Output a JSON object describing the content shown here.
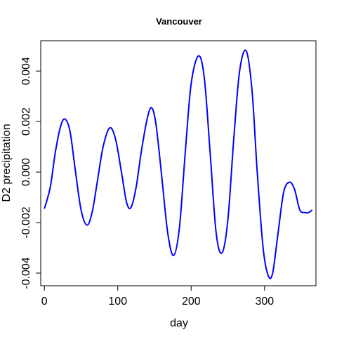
{
  "chart_data": {
    "type": "line",
    "title": "Vancouver",
    "xlabel": "day",
    "ylabel": "D2 precipitation",
    "xlim": [
      -5,
      370
    ],
    "ylim": [
      -0.0045,
      0.0052
    ],
    "x_ticks": [
      0,
      100,
      200,
      300
    ],
    "x_tick_labels": [
      "0",
      "100",
      "200",
      "300"
    ],
    "y_ticks": [
      -0.004,
      -0.002,
      0.0,
      0.002,
      0.004
    ],
    "y_tick_labels": [
      "-0.004",
      "-0.002",
      "0.000",
      "0.002",
      "0.004"
    ],
    "grid": false,
    "series": [
      {
        "color": "#0000ff",
        "x": [
          0,
          8,
          15,
          22,
          28,
          35,
          42,
          50,
          58,
          65,
          72,
          80,
          89,
          97,
          105,
          112,
          118,
          125,
          132,
          140,
          146,
          152,
          160,
          168,
          176,
          184,
          192,
          200,
          210,
          218,
          226,
          234,
          242,
          250,
          258,
          266,
          275,
          283,
          290,
          298,
          305,
          311,
          318,
          326,
          334,
          341,
          348,
          355,
          360,
          365
        ],
        "y": [
          -0.00145,
          -0.0006,
          0.0008,
          0.0018,
          0.0021,
          0.0016,
          0.0001,
          -0.0015,
          -0.0021,
          -0.0016,
          -0.0004,
          0.001,
          0.00175,
          0.0013,
          0.0,
          -0.0012,
          -0.0014,
          -0.0006,
          0.0008,
          0.0021,
          0.00255,
          0.0019,
          -0.0002,
          -0.0024,
          -0.0033,
          -0.0022,
          0.0008,
          0.0035,
          0.0046,
          0.0037,
          0.0007,
          -0.0024,
          -0.0032,
          -0.0019,
          0.0013,
          0.004,
          0.0048,
          0.0032,
          0.0,
          -0.003,
          -0.0041,
          -0.004,
          -0.0025,
          -0.0008,
          -0.0004,
          -0.0007,
          -0.0015,
          -0.0016,
          -0.0016,
          -0.0015
        ]
      }
    ]
  }
}
